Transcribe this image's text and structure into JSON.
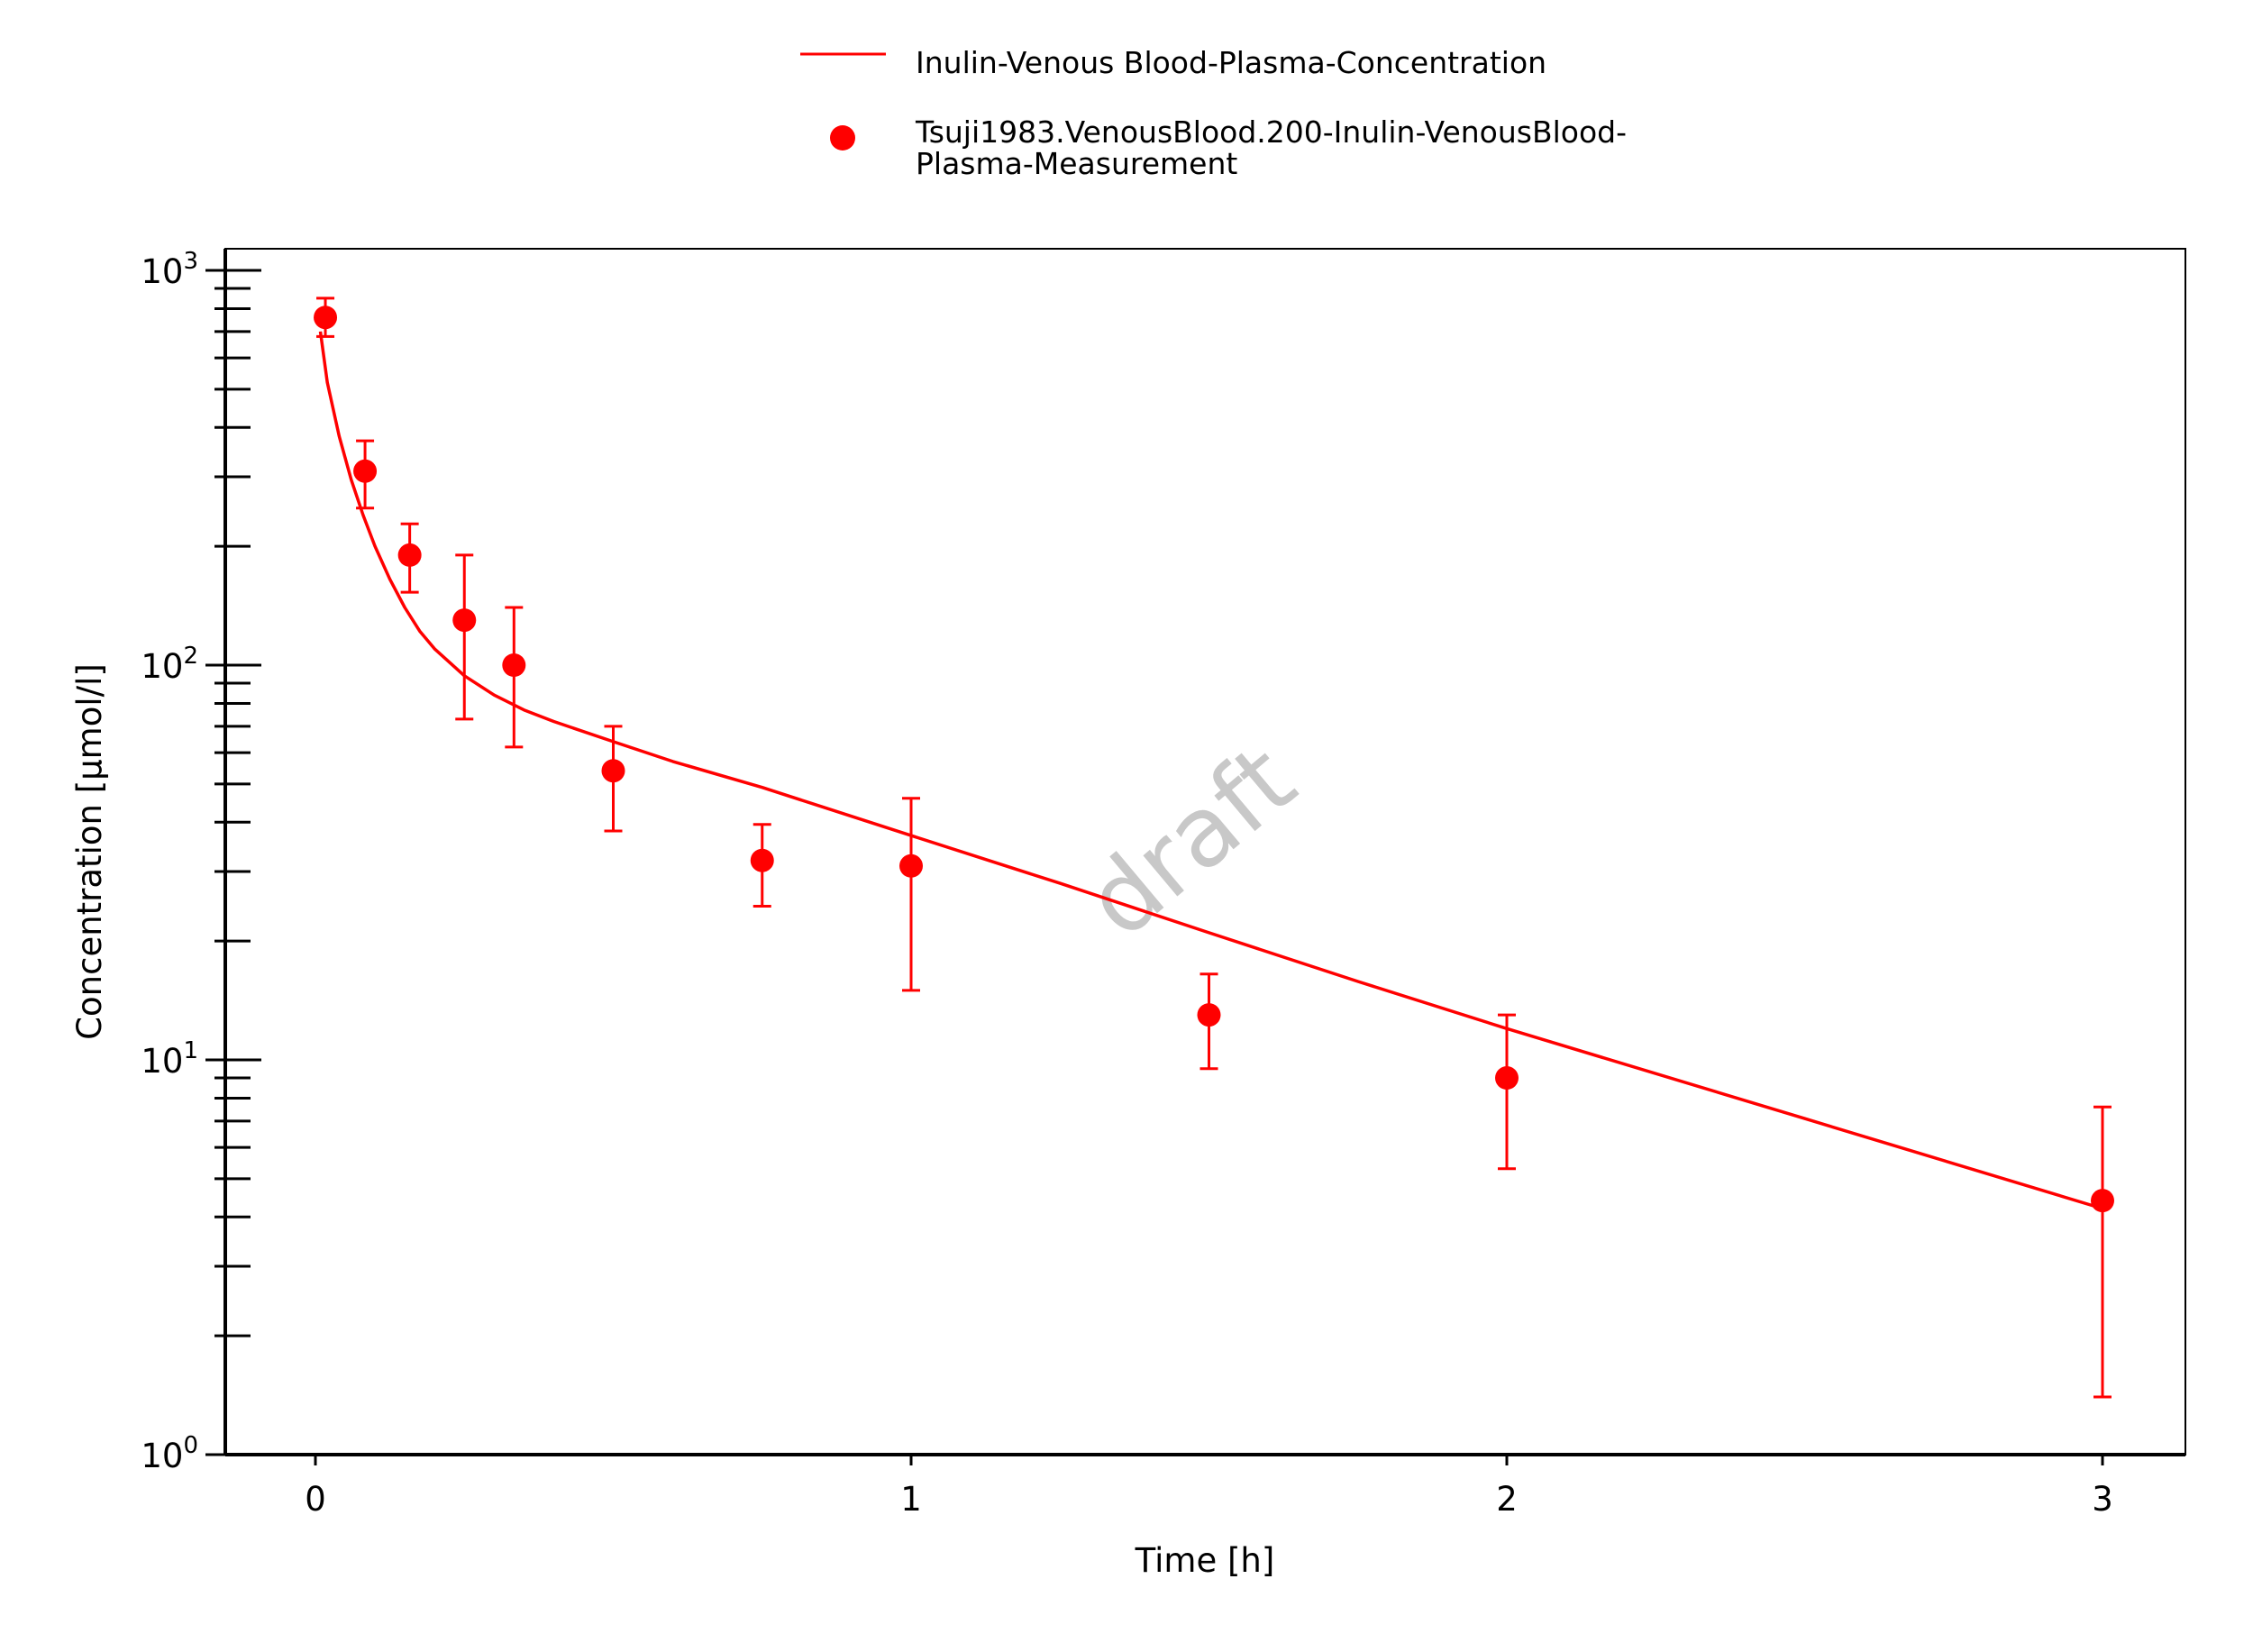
{
  "chart_data": {
    "type": "line",
    "xlabel": "Time [h]",
    "ylabel": "Concentration [µmol/l]",
    "xlim": [
      -0.15,
      3.15
    ],
    "ylim": [
      1,
      1100
    ],
    "yscale": "log",
    "x_ticks": [
      0,
      1,
      2,
      3
    ],
    "y_tick_labels": [
      {
        "value": 1,
        "base": "10",
        "exp": "0"
      },
      {
        "value": 10,
        "base": "10",
        "exp": "1"
      },
      {
        "value": 100,
        "base": "10",
        "exp": "2"
      },
      {
        "value": 1000,
        "base": "10",
        "exp": "3"
      }
    ],
    "grid": false,
    "legend_position": "top-center",
    "watermark": "draft",
    "series": [
      {
        "name": "Inulin-Venous Blood-Plasma-Concentration",
        "kind": "line",
        "color": "#ff0000",
        "x": [
          0.0083,
          0.02,
          0.04,
          0.06,
          0.08,
          0.1,
          0.125,
          0.15,
          0.175,
          0.2,
          0.25,
          0.3,
          0.35,
          0.4,
          0.5,
          0.6,
          0.75,
          1.0,
          1.25,
          1.5,
          1.75,
          2.0,
          2.5,
          3.0
        ],
        "y": [
          700,
          520,
          380,
          295,
          240,
          200,
          165,
          140,
          122,
          110,
          94,
          84,
          77,
          72,
          64,
          57,
          49,
          37,
          28,
          21,
          15.8,
          12,
          7.1,
          4.2
        ]
      },
      {
        "name": "Tsuji1983.VenousBlood.200-Inulin-VenousBlood-Plasma-Measurement",
        "kind": "scatter",
        "color": "#ff0000",
        "x": [
          0.0167,
          0.0833,
          0.1583,
          0.25,
          0.3333,
          0.5,
          0.75,
          1.0,
          1.5,
          2.0,
          3.0
        ],
        "y": [
          760,
          310,
          190,
          130,
          100,
          54,
          32,
          31,
          13,
          9,
          4.4
        ],
        "y_low": [
          680,
          250,
          153,
          73,
          62,
          38,
          24.5,
          15,
          9.5,
          5.3,
          1.4
        ],
        "y_high": [
          850,
          370,
          228,
          190,
          140,
          70,
          39.5,
          46,
          16.5,
          13,
          7.6
        ]
      }
    ]
  }
}
